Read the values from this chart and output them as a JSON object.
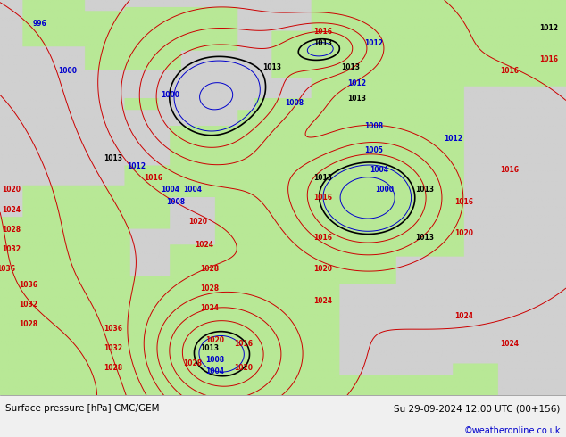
{
  "title_left": "Surface pressure [hPa] CMC/GEM",
  "title_right": "Su 29-09-2024 12:00 UTC (00+156)",
  "copyright": "©weatheronline.co.uk",
  "background_color": "#c8c8c8",
  "land_color": "#b8e896",
  "sea_color": "#d0d0d0",
  "fig_width": 6.34,
  "fig_height": 4.9,
  "bottom_bar_height": 0.095,
  "bottom_bar_color": "#f0f0f0",
  "contour_colors": {
    "low": "#0000cc",
    "high": "#cc0000",
    "base": "#000000"
  }
}
